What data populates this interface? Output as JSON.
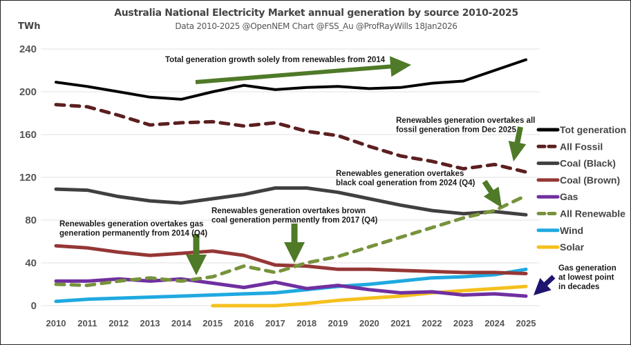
{
  "chart_data": {
    "type": "line",
    "title": "Australia National Electricity Market annual generation by source 2010-2025",
    "subtitle": "Data 2010-2025 @OpenNEM Chart @FSS_Au @ProfRayWills 18Jan2026",
    "ylabel": "TWh",
    "xlabel": "",
    "ylim": [
      0,
      240
    ],
    "yticks": [
      0,
      40,
      80,
      120,
      160,
      200,
      240
    ],
    "grid": true,
    "legend_position": "right",
    "x": [
      2010,
      2011,
      2012,
      2013,
      2014,
      2015,
      2016,
      2017,
      2018,
      2019,
      2020,
      2021,
      2022,
      2023,
      2024,
      2025
    ],
    "series": [
      {
        "name": "Tot generation",
        "color": "#000000",
        "dash": false,
        "values": [
          209,
          205,
          200,
          195,
          193,
          200,
          206,
          202,
          204,
          205,
          203,
          204,
          208,
          210,
          220,
          230
        ]
      },
      {
        "name": "All Fossil",
        "color": "#5c1f1f",
        "dash": true,
        "values": [
          188,
          186,
          178,
          169,
          171,
          172,
          168,
          171,
          163,
          159,
          149,
          140,
          135,
          128,
          132,
          125
        ]
      },
      {
        "name": "Coal (Black)",
        "color": "#404040",
        "dash": false,
        "values": [
          109,
          108,
          102,
          98,
          96,
          100,
          104,
          110,
          110,
          106,
          100,
          94,
          89,
          86,
          88,
          85
        ]
      },
      {
        "name": "Coal (Brown)",
        "color": "#953735",
        "dash": false,
        "values": [
          56,
          54,
          50,
          47,
          49,
          51,
          47,
          38,
          37,
          34,
          34,
          33,
          32,
          31,
          31,
          30
        ]
      },
      {
        "name": "Gas",
        "color": "#7030a0",
        "dash": false,
        "values": [
          23,
          23,
          25,
          23,
          25,
          21,
          17,
          22,
          16,
          19,
          15,
          12,
          13,
          10,
          11,
          9
        ]
      },
      {
        "name": "All Renewable",
        "color": "#77933c",
        "dash": true,
        "values": [
          20,
          19,
          23,
          26,
          23,
          27,
          37,
          31,
          40,
          46,
          55,
          64,
          73,
          82,
          89,
          103
        ]
      },
      {
        "name": "Wind",
        "color": "#1fa9e1",
        "dash": false,
        "values": [
          4,
          6,
          7,
          8,
          9,
          10,
          11,
          12,
          15,
          18,
          20,
          23,
          26,
          27,
          29,
          34
        ]
      },
      {
        "name": "Solar",
        "color": "#f5c01e",
        "dash": false,
        "values": [
          null,
          null,
          null,
          null,
          null,
          0,
          0,
          0,
          2,
          5,
          7,
          9,
          12,
          14,
          16,
          18
        ]
      }
    ],
    "annotations": [
      {
        "lines": [
          "Total generation growth solely from renewables from 2014"
        ],
        "arrow_color": "#4f7a28"
      },
      {
        "lines": [
          "Renewables generation overtakes all",
          "fossil generation from Dec 2025"
        ],
        "arrow_color": "#4f7a28"
      },
      {
        "lines": [
          "Renewables generation overtakes",
          "black coal generation from 2024 (Q4)"
        ],
        "arrow_color": "#4f7a28"
      },
      {
        "lines": [
          "Renewables generation overtakes brown",
          "coal generation permanently from 2017 (Q4)"
        ],
        "arrow_color": "#4f7a28"
      },
      {
        "lines": [
          "Renewables generation overtakes gas",
          "generation permanently from 2014 (Q4)"
        ],
        "arrow_color": "#4f7a28"
      },
      {
        "lines": [
          "Gas generation",
          "at lowest point",
          "in decades"
        ],
        "arrow_color": "#1f1470"
      }
    ]
  }
}
